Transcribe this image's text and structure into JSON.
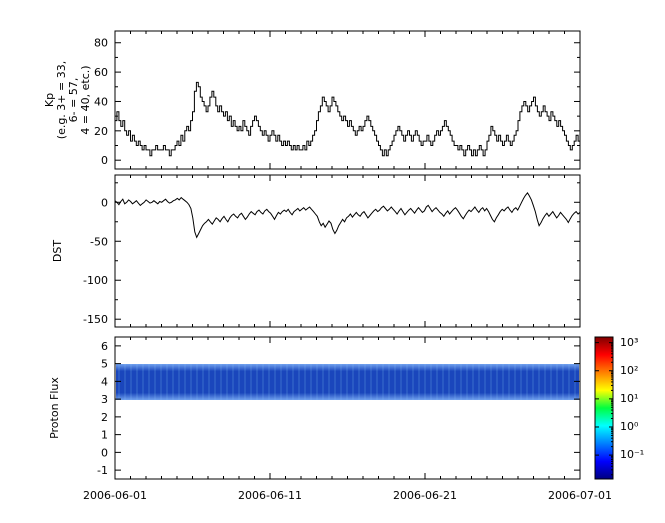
{
  "figure": {
    "background": "#ffffff",
    "foreground": "#000000"
  },
  "xaxis": {
    "tick_labels": [
      "2006-06-01",
      "2006-06-11",
      "2006-06-21",
      "2006-07-01"
    ],
    "tick_positions_days": [
      0,
      10,
      20,
      30
    ],
    "minor_tick_interval_days": 1,
    "range_days": [
      0,
      30
    ]
  },
  "chart_data": [
    {
      "id": "kp",
      "type": "line",
      "style": "step",
      "line_color": "#000000",
      "ylabel_lines": [
        "Kp",
        "(e.g. 3+ = 33,",
        "6- = 57,",
        "4 = 40, etc.)"
      ],
      "ylim": [
        -6,
        88
      ],
      "yticks": [
        0,
        20,
        40,
        60,
        80
      ],
      "y_minor_step": 10,
      "x_start": "2006-06-01",
      "x_end": "2006-07-01",
      "points_per_day": 8,
      "values": [
        27,
        33,
        27,
        23,
        27,
        20,
        17,
        20,
        13,
        17,
        13,
        10,
        13,
        10,
        7,
        10,
        7,
        7,
        3,
        7,
        7,
        10,
        7,
        7,
        7,
        10,
        7,
        7,
        3,
        7,
        7,
        10,
        13,
        10,
        17,
        13,
        20,
        23,
        20,
        27,
        33,
        47,
        53,
        50,
        43,
        40,
        37,
        33,
        37,
        43,
        47,
        43,
        37,
        33,
        37,
        33,
        30,
        33,
        27,
        30,
        23,
        27,
        23,
        20,
        23,
        20,
        27,
        23,
        20,
        17,
        23,
        27,
        30,
        27,
        23,
        20,
        17,
        20,
        17,
        13,
        17,
        20,
        17,
        13,
        17,
        13,
        10,
        13,
        10,
        13,
        10,
        7,
        10,
        7,
        10,
        7,
        7,
        10,
        7,
        13,
        10,
        13,
        17,
        20,
        27,
        33,
        37,
        43,
        40,
        37,
        33,
        37,
        43,
        40,
        37,
        33,
        30,
        27,
        30,
        27,
        23,
        27,
        23,
        20,
        17,
        20,
        23,
        20,
        23,
        27,
        30,
        27,
        23,
        20,
        17,
        13,
        10,
        7,
        3,
        7,
        3,
        7,
        10,
        13,
        17,
        20,
        23,
        20,
        17,
        13,
        17,
        20,
        17,
        13,
        17,
        20,
        17,
        13,
        10,
        13,
        13,
        17,
        13,
        10,
        13,
        17,
        20,
        17,
        20,
        23,
        27,
        23,
        20,
        17,
        13,
        10,
        10,
        7,
        10,
        7,
        3,
        7,
        10,
        7,
        3,
        7,
        3,
        7,
        10,
        7,
        3,
        7,
        13,
        17,
        23,
        20,
        17,
        13,
        17,
        13,
        10,
        13,
        17,
        13,
        10,
        13,
        17,
        20,
        27,
        33,
        37,
        40,
        37,
        33,
        37,
        40,
        43,
        37,
        33,
        30,
        33,
        37,
        33,
        30,
        27,
        33,
        30,
        27,
        23,
        27,
        23,
        20,
        17,
        13,
        10,
        7,
        10,
        13,
        17,
        13
      ]
    },
    {
      "id": "dst",
      "type": "line",
      "style": "line",
      "line_color": "#000000",
      "ylabel": "DST",
      "ylim": [
        -160,
        35
      ],
      "yticks": [
        0,
        -50,
        -100,
        -150
      ],
      "y_minor_step": 25,
      "x_start": "2006-06-01",
      "x_end": "2006-07-01",
      "points_per_day": 8,
      "values": [
        2,
        0,
        -3,
        1,
        4,
        -2,
        0,
        3,
        1,
        -2,
        0,
        2,
        -1,
        -4,
        -2,
        0,
        3,
        1,
        -1,
        0,
        2,
        0,
        -2,
        1,
        0,
        2,
        4,
        1,
        -1,
        0,
        2,
        3,
        5,
        3,
        6,
        4,
        2,
        0,
        -3,
        -8,
        -20,
        -38,
        -45,
        -40,
        -35,
        -30,
        -27,
        -25,
        -22,
        -25,
        -28,
        -24,
        -20,
        -22,
        -25,
        -21,
        -18,
        -22,
        -25,
        -20,
        -17,
        -15,
        -18,
        -20,
        -16,
        -14,
        -18,
        -22,
        -19,
        -15,
        -12,
        -14,
        -16,
        -12,
        -10,
        -13,
        -15,
        -11,
        -9,
        -12,
        -14,
        -18,
        -22,
        -17,
        -13,
        -15,
        -12,
        -10,
        -12,
        -9,
        -13,
        -16,
        -12,
        -10,
        -8,
        -11,
        -9,
        -7,
        -10,
        -8,
        -6,
        -9,
        -12,
        -15,
        -18,
        -25,
        -30,
        -27,
        -32,
        -28,
        -24,
        -27,
        -35,
        -40,
        -36,
        -30,
        -26,
        -22,
        -25,
        -20,
        -18,
        -15,
        -19,
        -16,
        -13,
        -16,
        -18,
        -14,
        -12,
        -16,
        -20,
        -17,
        -14,
        -11,
        -9,
        -12,
        -10,
        -7,
        -5,
        -8,
        -11,
        -9,
        -6,
        -9,
        -12,
        -15,
        -11,
        -8,
        -12,
        -16,
        -13,
        -10,
        -8,
        -11,
        -14,
        -10,
        -7,
        -10,
        -13,
        -11,
        -6,
        -4,
        -8,
        -12,
        -9,
        -7,
        -10,
        -13,
        -15,
        -18,
        -14,
        -11,
        -15,
        -12,
        -9,
        -7,
        -10,
        -14,
        -18,
        -21,
        -17,
        -13,
        -10,
        -12,
        -9,
        -6,
        -10,
        -13,
        -9,
        -7,
        -11,
        -8,
        -12,
        -17,
        -22,
        -25,
        -20,
        -16,
        -12,
        -9,
        -11,
        -8,
        -6,
        -10,
        -13,
        -9,
        -7,
        -10,
        -5,
        0,
        5,
        9,
        12,
        8,
        3,
        -4,
        -12,
        -22,
        -30,
        -26,
        -21,
        -17,
        -14,
        -18,
        -15,
        -12,
        -16,
        -20,
        -17,
        -13,
        -16,
        -19,
        -22,
        -26,
        -21,
        -17,
        -14,
        -12,
        -15,
        -13
      ]
    },
    {
      "id": "proton-flux",
      "type": "heatmap",
      "ylabel": "Proton Flux",
      "ylim": [
        -1.5,
        6.5
      ],
      "yticks": [
        -1,
        0,
        1,
        2,
        3,
        4,
        5,
        6
      ],
      "x_start": "2006-06-01",
      "x_end": "2006-07-01",
      "band": {
        "y_min": 3,
        "y_max": 5,
        "flux_log10_range": [
          -1,
          0.5
        ],
        "description": "continuous low-flux band (blue, ~1e-1 to ~3e0) with vertical striations spanning the full time range",
        "colors": [
          "#0a2aa0",
          "#2a63d8",
          "#4a8ae8"
        ]
      }
    }
  ],
  "colorbar": {
    "scale": "log",
    "colormap": "jet",
    "tick_labels": [
      "10³",
      "10²",
      "10¹",
      "10⁰",
      "10⁻¹"
    ],
    "tick_exponents": [
      3,
      2,
      1,
      0,
      -1
    ],
    "range_exponents": [
      -1.85,
      3.2
    ],
    "stops": [
      "#000080",
      "#0000ff",
      "#00ffff",
      "#00ff40",
      "#ffff00",
      "#ff8000",
      "#ff0000",
      "#800000"
    ],
    "stop_positions": [
      0,
      12.5,
      37.5,
      50,
      62.5,
      75,
      87.5,
      100
    ]
  }
}
